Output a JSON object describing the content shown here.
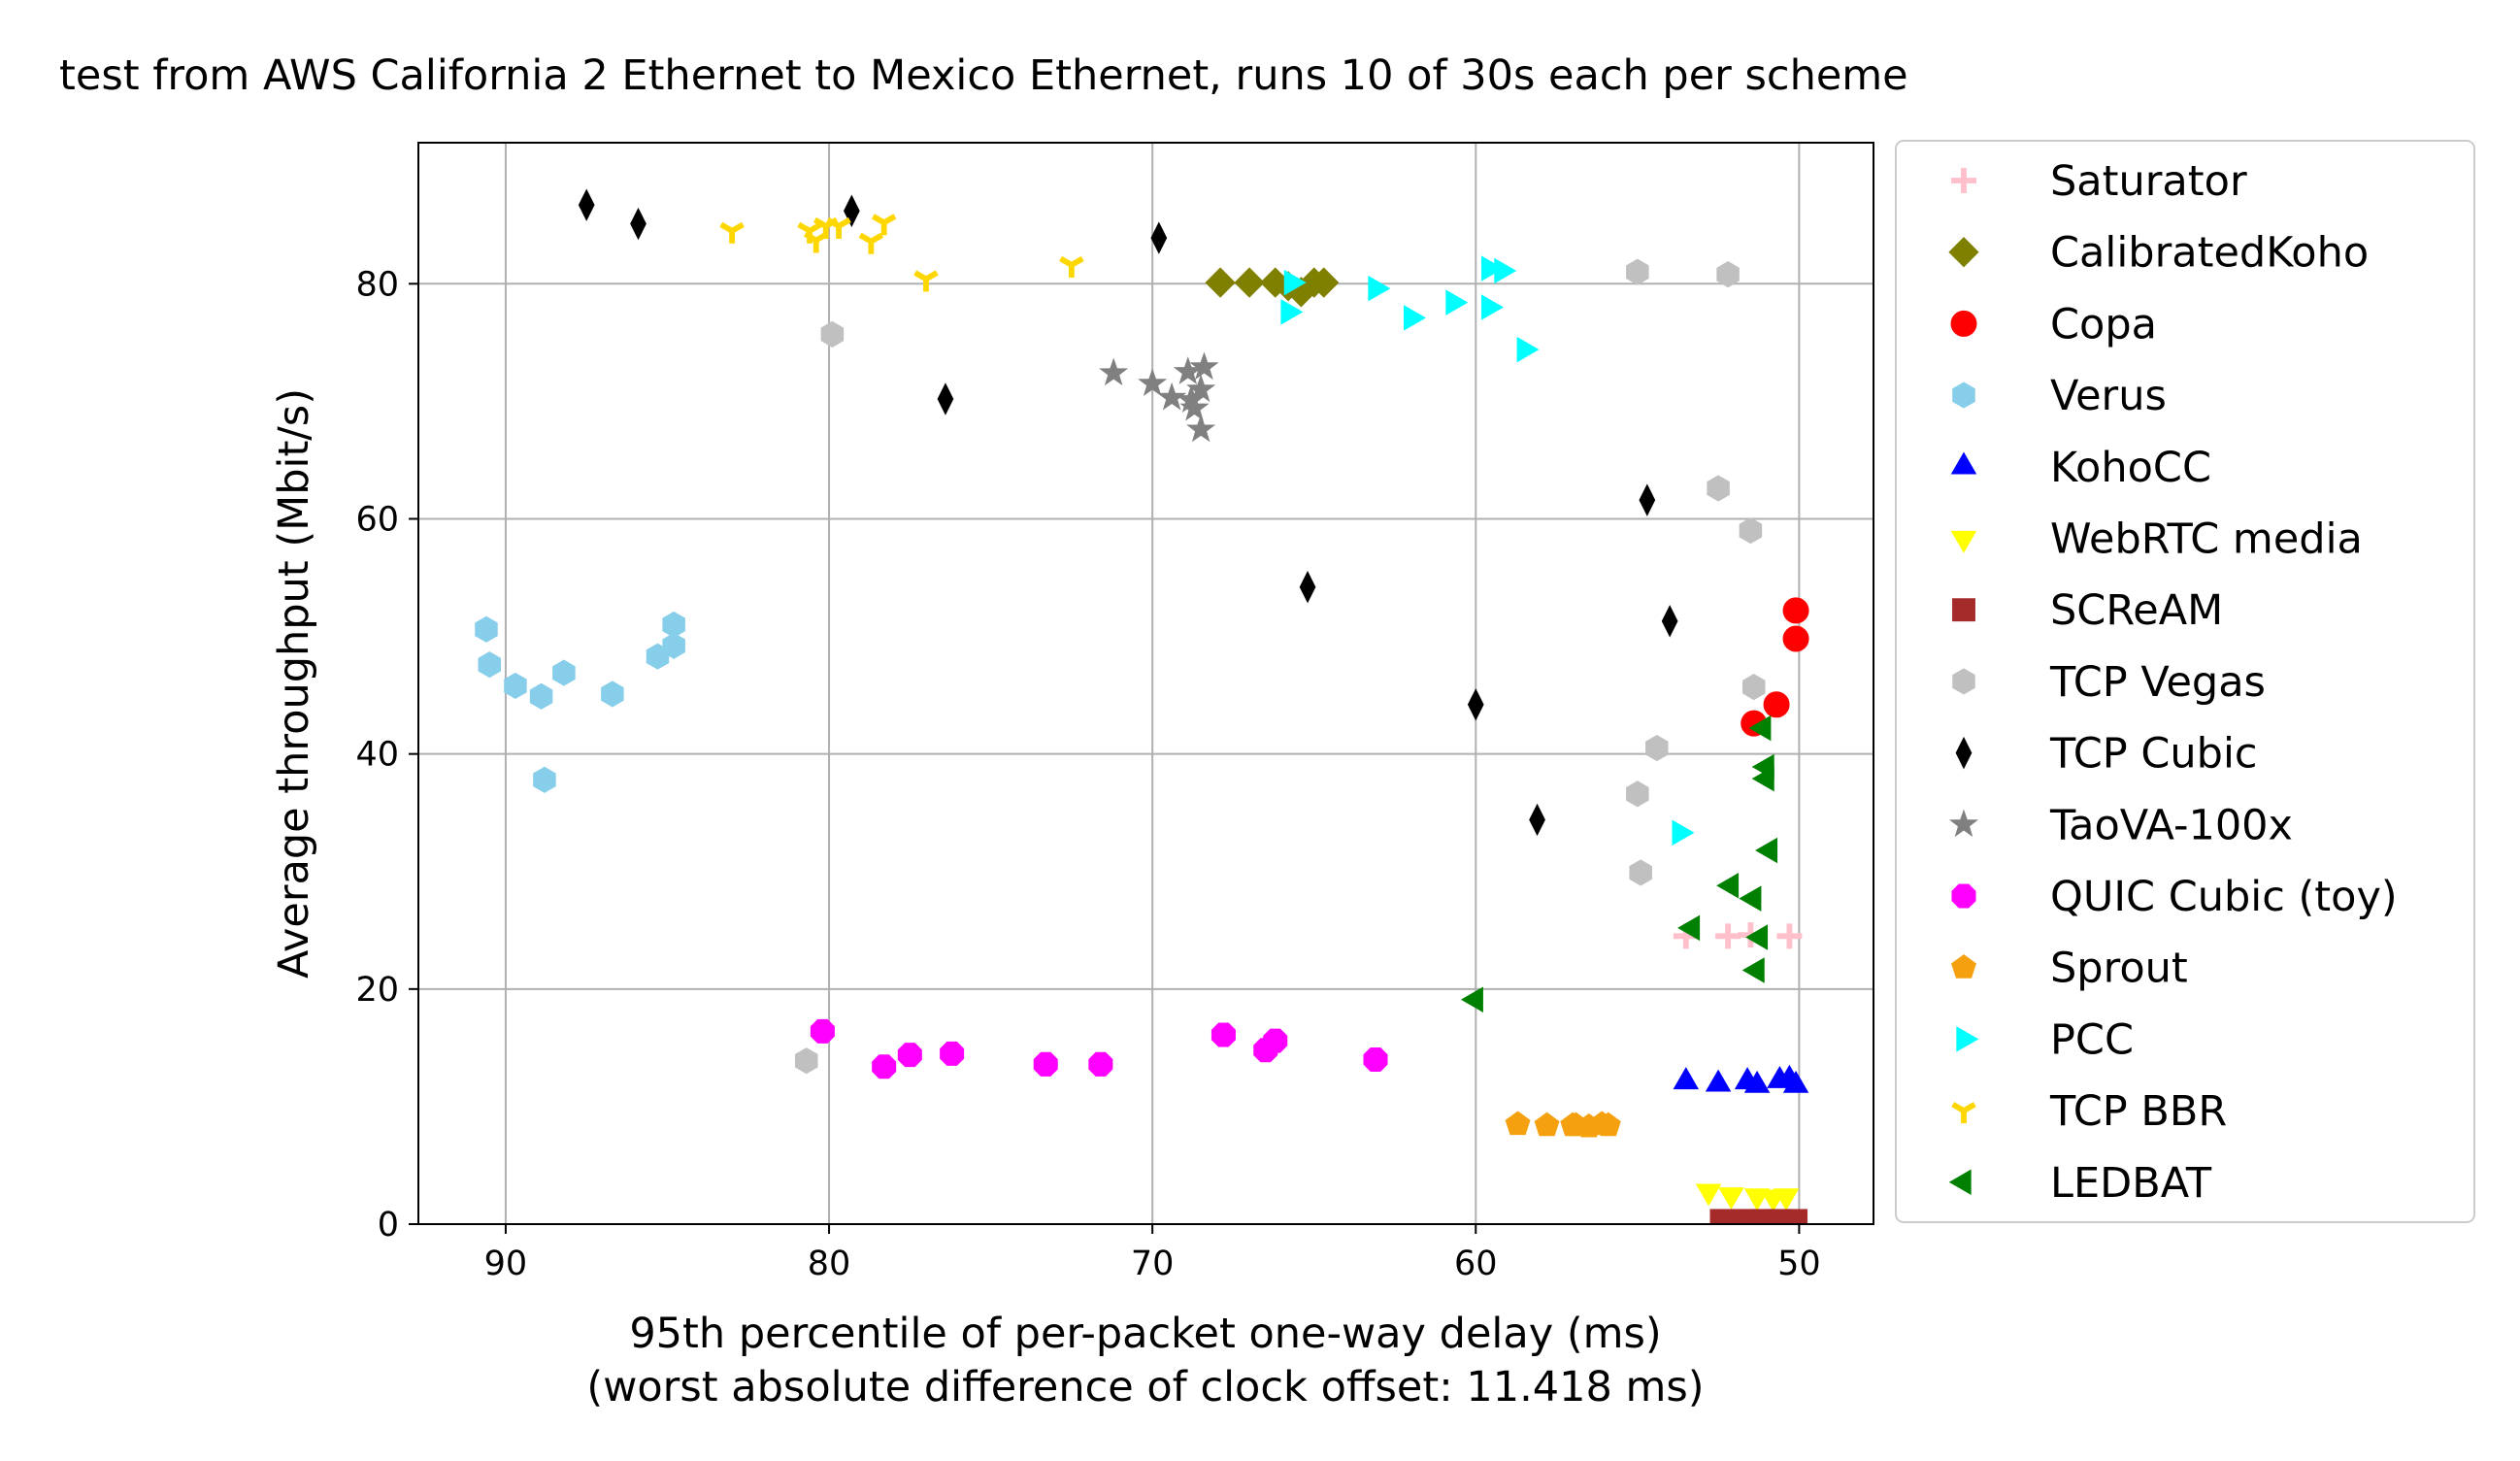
{
  "chart_data": {
    "type": "scatter",
    "title": "test from AWS California 2 Ethernet to Mexico Ethernet, runs 10 of 30s each per scheme",
    "xlabel_line1": "95th percentile of per-packet one-way delay (ms)",
    "xlabel_line2": "(worst absolute difference of clock offset: 11.418 ms)",
    "ylabel": "Average throughput (Mbit/s)",
    "xlim": [
      92.7,
      47.7
    ],
    "ylim": [
      0,
      92
    ],
    "x_inverted": true,
    "grid": true,
    "legend_position": "outside-right",
    "xticks": [
      90,
      80,
      70,
      60,
      50
    ],
    "yticks": [
      0,
      20,
      40,
      60,
      80
    ],
    "series": [
      {
        "name": "Saturator",
        "marker": "plus",
        "color": "#ffc0cb",
        "points": [
          [
            53.5,
            24.5
          ],
          [
            52.2,
            24.5
          ],
          [
            51.5,
            24.6
          ],
          [
            50.3,
            24.5
          ]
        ]
      },
      {
        "name": "CalibratedKoho",
        "marker": "diamond",
        "color": "#808000",
        "points": [
          [
            67.9,
            80.1
          ],
          [
            67,
            80.1
          ],
          [
            66.2,
            80.1
          ],
          [
            65.8,
            79.8
          ],
          [
            65.4,
            79.3
          ],
          [
            65,
            80.1
          ],
          [
            64.7,
            80.1
          ]
        ]
      },
      {
        "name": "Copa",
        "marker": "circle",
        "color": "#ff0000",
        "points": [
          [
            50.1,
            52.2
          ],
          [
            50.1,
            49.8
          ],
          [
            50.7,
            44.2
          ],
          [
            51.4,
            42.6
          ]
        ]
      },
      {
        "name": "Verus",
        "marker": "hexagon",
        "color": "#87ceeb",
        "points": [
          [
            90.6,
            50.6
          ],
          [
            90.5,
            47.6
          ],
          [
            89.7,
            45.8
          ],
          [
            88.9,
            44.9
          ],
          [
            88.2,
            46.9
          ],
          [
            86.7,
            45.1
          ],
          [
            85.3,
            48.3
          ],
          [
            84.8,
            49.2
          ],
          [
            84.8,
            51
          ],
          [
            88.8,
            37.8
          ]
        ]
      },
      {
        "name": "KohoCC",
        "marker": "triangle-up",
        "color": "#0000ff",
        "points": [
          [
            53.5,
            12.1
          ],
          [
            52.5,
            11.9
          ],
          [
            51.6,
            12.1
          ],
          [
            51.3,
            11.8
          ],
          [
            50.6,
            12.2
          ],
          [
            50.3,
            12.3
          ],
          [
            50.1,
            11.8
          ]
        ]
      },
      {
        "name": "WebRTC media",
        "marker": "triangle-down",
        "color": "#ffff00",
        "points": [
          [
            52.8,
            2.8
          ],
          [
            52.1,
            2.5
          ],
          [
            51.3,
            2.4
          ],
          [
            50.8,
            2.3
          ],
          [
            50.4,
            2.4
          ]
        ]
      },
      {
        "name": "SCReAM",
        "marker": "square",
        "color": "#a52a2a",
        "points": [
          [
            52.4,
            0.3
          ],
          [
            51.7,
            0.3
          ],
          [
            51.1,
            0.3
          ],
          [
            50.6,
            0.3
          ],
          [
            50.1,
            0.3
          ]
        ]
      },
      {
        "name": "TCP Vegas",
        "marker": "hexagon",
        "color": "#c0c0c0",
        "points": [
          [
            55,
            81
          ],
          [
            52.2,
            80.8
          ],
          [
            79.9,
            75.7
          ],
          [
            52.5,
            62.6
          ],
          [
            51.5,
            59
          ],
          [
            51.4,
            45.7
          ],
          [
            54.4,
            40.5
          ],
          [
            55,
            36.6
          ],
          [
            54.9,
            29.9
          ],
          [
            80.7,
            13.9
          ]
        ]
      },
      {
        "name": "TCP Cubic",
        "marker": "thin-diamond",
        "color": "#000000",
        "points": [
          [
            87.5,
            86.7
          ],
          [
            85.9,
            85.1
          ],
          [
            79.3,
            86.2
          ],
          [
            69.8,
            83.9
          ],
          [
            76.4,
            70.2
          ],
          [
            54.7,
            61.6
          ],
          [
            65.2,
            54.2
          ],
          [
            54,
            51.3
          ],
          [
            60,
            44.2
          ],
          [
            58.1,
            34.4
          ]
        ]
      },
      {
        "name": "TaoVA-100x",
        "marker": "star",
        "color": "#808080",
        "points": [
          [
            71.2,
            72.4
          ],
          [
            70,
            71.5
          ],
          [
            69.4,
            70.3
          ],
          [
            68.8,
            70.1
          ],
          [
            68.5,
            71
          ],
          [
            68.4,
            72.9
          ],
          [
            68.5,
            67.6
          ],
          [
            68.7,
            69.4
          ],
          [
            68.9,
            72.5
          ]
        ]
      },
      {
        "name": "QUIC Cubic (toy)",
        "marker": "octagon",
        "color": "#ff00ff",
        "points": [
          [
            80.2,
            16.4
          ],
          [
            78.3,
            13.4
          ],
          [
            77.5,
            14.4
          ],
          [
            76.2,
            14.5
          ],
          [
            73.3,
            13.6
          ],
          [
            71.6,
            13.6
          ],
          [
            67.8,
            16.1
          ],
          [
            66.5,
            14.8
          ],
          [
            66.2,
            15.6
          ],
          [
            63.1,
            14
          ]
        ]
      },
      {
        "name": "Sprout",
        "marker": "pentagon",
        "color": "#f5a00f",
        "points": [
          [
            58.7,
            8.5
          ],
          [
            57.8,
            8.4
          ],
          [
            56.9,
            8.4
          ],
          [
            56.1,
            8.5
          ],
          [
            55.9,
            8.4
          ],
          [
            57,
            8.4
          ],
          [
            56.5,
            8.3
          ]
        ]
      },
      {
        "name": "PCC",
        "marker": "triangle-right",
        "color": "#00ffff",
        "points": [
          [
            65.7,
            80.1
          ],
          [
            65.8,
            77.6
          ],
          [
            63.1,
            79.6
          ],
          [
            62,
            77.1
          ],
          [
            60.7,
            78.4
          ],
          [
            59.6,
            81.3
          ],
          [
            59.2,
            81.1
          ],
          [
            59.6,
            78
          ],
          [
            58.5,
            74.4
          ],
          [
            53.7,
            33.3
          ]
        ]
      },
      {
        "name": "TCP BBR",
        "marker": "tri-down",
        "color": "#ffd700",
        "points": [
          [
            83,
            84.5
          ],
          [
            80.6,
            84.5
          ],
          [
            80.4,
            83.7
          ],
          [
            80.1,
            84.9
          ],
          [
            79.7,
            84.9
          ],
          [
            78.7,
            83.6
          ],
          [
            78.3,
            85.2
          ],
          [
            77,
            80.4
          ],
          [
            72.5,
            81.6
          ]
        ]
      },
      {
        "name": "LEDBAT",
        "marker": "triangle-left",
        "color": "#008000",
        "points": [
          [
            51.1,
            42.2
          ],
          [
            51,
            38.9
          ],
          [
            51,
            37.9
          ],
          [
            50.9,
            31.8
          ],
          [
            52.1,
            28.8
          ],
          [
            51.4,
            27.7
          ],
          [
            53.3,
            25.2
          ],
          [
            51.2,
            24.4
          ],
          [
            51.3,
            21.6
          ],
          [
            60,
            19.1
          ]
        ]
      }
    ]
  }
}
